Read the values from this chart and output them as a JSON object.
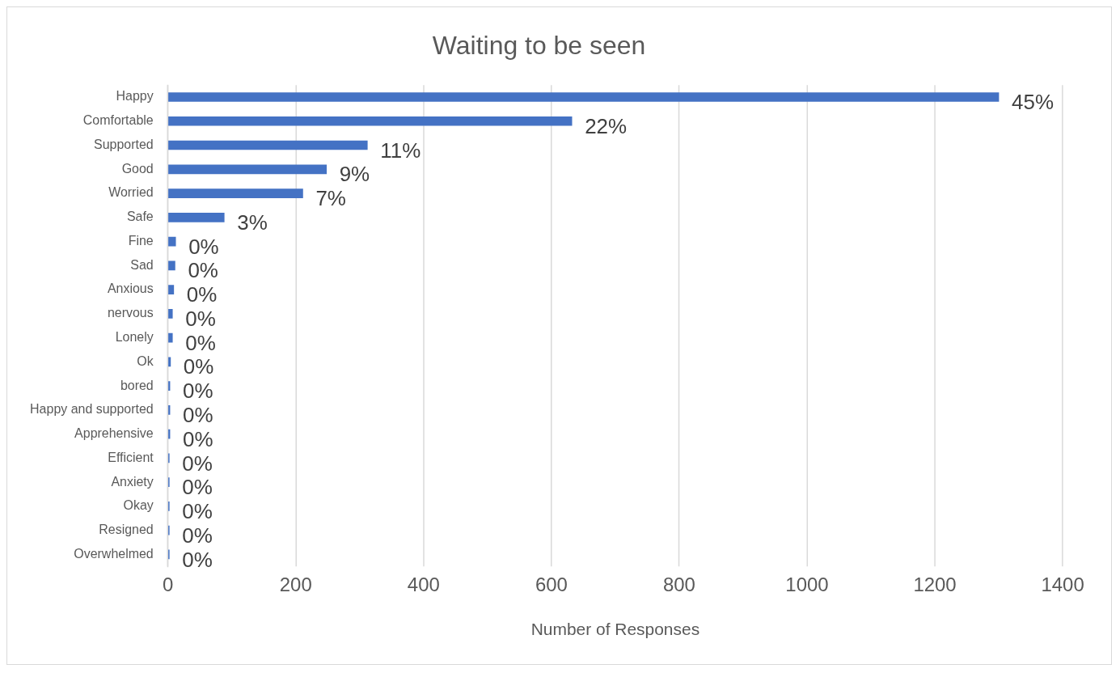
{
  "chart_data": {
    "type": "bar",
    "orientation": "horizontal",
    "title": "Waiting to be seen",
    "xlabel": "Number of Responses",
    "categories": [
      "Happy",
      "Comfortable",
      "Supported",
      "Good",
      "Worried",
      "Safe",
      "Fine",
      "Sad",
      "Anxious",
      "nervous",
      "Lonely",
      "Ok",
      "bored",
      "Happy and supported",
      "Apprehensive",
      "Efficient",
      "Anxiety",
      "Okay",
      "Resigned",
      "Overwhelmed"
    ],
    "values": [
      1300,
      632,
      312,
      248,
      211,
      88,
      12,
      11,
      9,
      7,
      7,
      4,
      3,
      3,
      3,
      2,
      2,
      2,
      2,
      2
    ],
    "annotations": [
      {
        "text": "45%",
        "x": 1300,
        "y": "Happy"
      },
      {
        "text": "22%",
        "x": 632,
        "y": "Comfortable"
      },
      {
        "text": "11%",
        "x": 312,
        "y": "Supported"
      },
      {
        "text": "9%",
        "x": 248,
        "y": "Good"
      },
      {
        "text": "7%",
        "x": 211,
        "y": "Worried"
      },
      {
        "text": "3%",
        "x": 88,
        "y": "Safe"
      },
      {
        "text": "0%",
        "x": 12,
        "y": "Fine"
      },
      {
        "text": "0%",
        "x": 11,
        "y": "Sad"
      },
      {
        "text": "0%",
        "x": 9,
        "y": "Anxious"
      },
      {
        "text": "0%",
        "x": 7,
        "y": "nervous"
      },
      {
        "text": "0%",
        "x": 7,
        "y": "Lonely"
      },
      {
        "text": "0%",
        "x": 4,
        "y": "Ok"
      },
      {
        "text": "0%",
        "x": 3,
        "y": "bored"
      },
      {
        "text": "0%",
        "x": 3,
        "y": "Happy and supported"
      },
      {
        "text": "0%",
        "x": 3,
        "y": "Apprehensive"
      },
      {
        "text": "0%",
        "x": 2,
        "y": "Efficient"
      },
      {
        "text": "0%",
        "x": 2,
        "y": "Anxiety"
      },
      {
        "text": "0%",
        "x": 2,
        "y": "Okay"
      },
      {
        "text": "0%",
        "x": 2,
        "y": "Resigned"
      },
      {
        "text": "0%",
        "x": 2,
        "y": "Overwhelmed"
      }
    ],
    "color": "#4472c4",
    "xlim": [
      0,
      1400
    ],
    "xticks": [
      0,
      200,
      400,
      600,
      800,
      1000,
      1200,
      1400
    ],
    "grid": "x",
    "legend": false
  }
}
